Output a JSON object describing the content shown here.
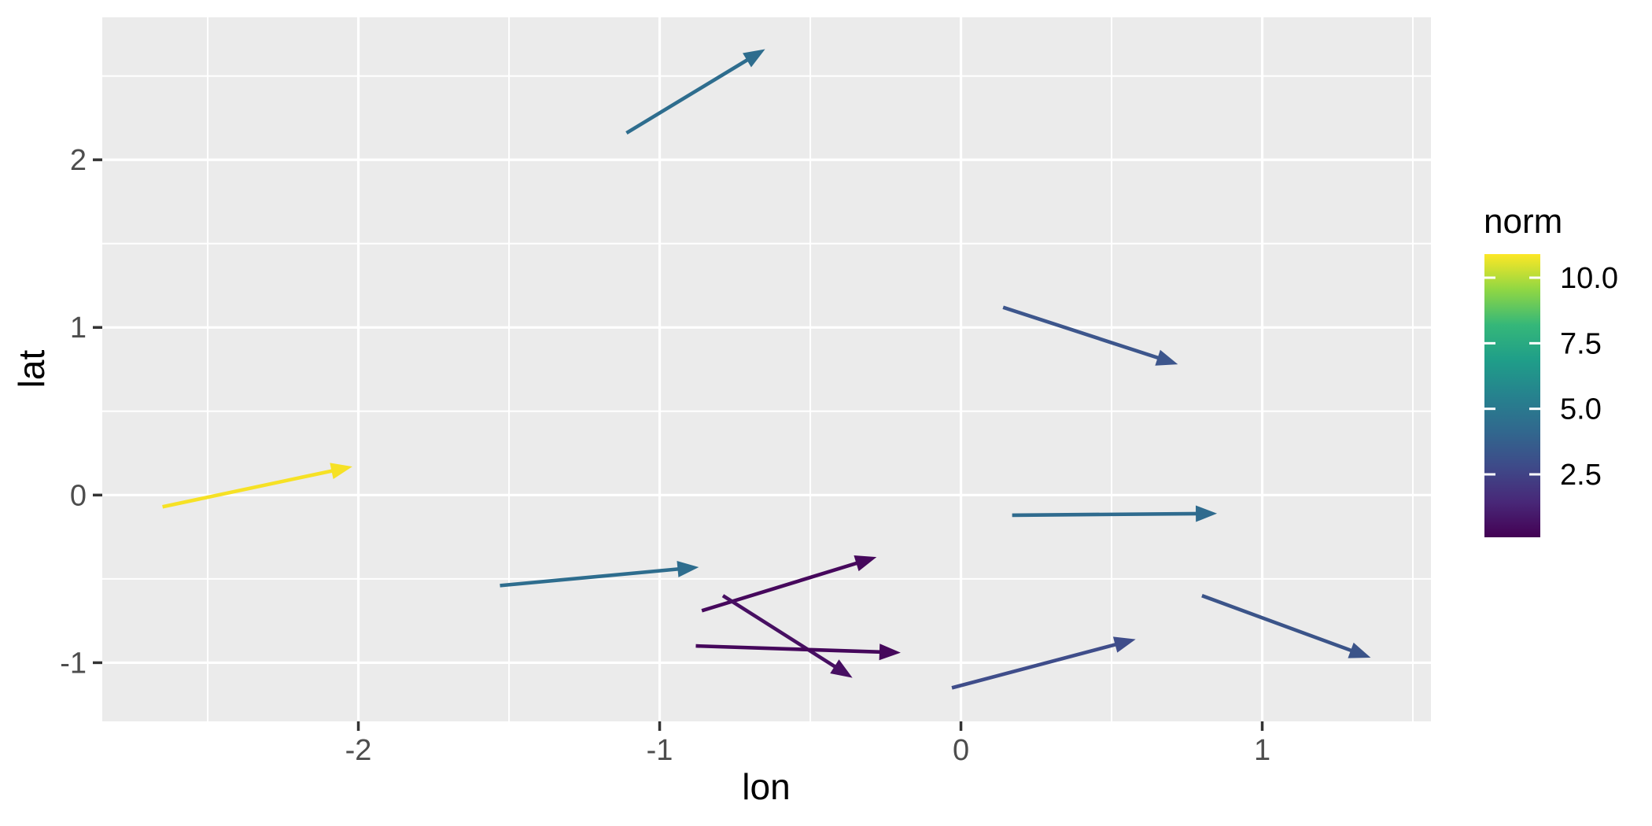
{
  "figure": {
    "background": "#ffffff",
    "panel_background": "#ebebeb",
    "grid_color": "#ffffff",
    "tick_mark_color": "#333333",
    "axis_text_color": "#4d4d4d",
    "title_color": "#000000"
  },
  "chart_data": {
    "type": "quiver",
    "title": "",
    "xlabel": "lon",
    "ylabel": "lat",
    "xlim": [
      -2.85,
      1.56
    ],
    "ylim": [
      -1.35,
      2.85
    ],
    "x_major_breaks": [
      -2,
      -1,
      0,
      1
    ],
    "x_major_labels": [
      "-2",
      "-1",
      "0",
      "1"
    ],
    "x_minor_breaks": [
      -2.5,
      -1.5,
      -0.5,
      0.5,
      1.5
    ],
    "y_major_breaks": [
      2,
      1,
      0,
      -1
    ],
    "y_major_labels": [
      "2",
      "1",
      "0",
      "-1"
    ],
    "y_minor_breaks": [
      2.5,
      1.5,
      0.5,
      -0.5
    ],
    "grid": true,
    "legend_position": "right",
    "arrows": [
      {
        "name": "arrow-top-teal",
        "x0": -1.11,
        "y0": 2.16,
        "x1": -0.65,
        "y1": 2.66,
        "color": "#2e6d8e",
        "norm_approx": 3.7
      },
      {
        "name": "arrow-upper-right-slate",
        "x0": 0.14,
        "y0": 1.12,
        "x1": 0.72,
        "y1": 0.78,
        "color": "#3d568c",
        "norm_approx": 2.9
      },
      {
        "name": "arrow-yellow",
        "x0": -2.65,
        "y0": -0.07,
        "x1": -2.02,
        "y1": 0.17,
        "color": "#f6e125",
        "norm_approx": 10.6
      },
      {
        "name": "arrow-mid-teal",
        "x0": -1.53,
        "y0": -0.54,
        "x1": -0.87,
        "y1": -0.43,
        "color": "#2e6d8e",
        "norm_approx": 3.7
      },
      {
        "name": "arrow-purple-upright",
        "x0": -0.86,
        "y0": -0.69,
        "x1": -0.28,
        "y1": -0.37,
        "color": "#46085c",
        "norm_approx": 0.7
      },
      {
        "name": "arrow-purple-downright",
        "x0": -0.79,
        "y0": -0.6,
        "x1": -0.36,
        "y1": -1.09,
        "color": "#470f62",
        "norm_approx": 0.9
      },
      {
        "name": "arrow-purple-horizontal",
        "x0": -0.88,
        "y0": -0.9,
        "x1": -0.2,
        "y1": -0.94,
        "color": "#45075b",
        "norm_approx": 0.6
      },
      {
        "name": "arrow-right-teal",
        "x0": 0.17,
        "y0": -0.12,
        "x1": 0.85,
        "y1": -0.11,
        "color": "#2f6b8e",
        "norm_approx": 3.6
      },
      {
        "name": "arrow-navy-upright",
        "x0": -0.03,
        "y0": -1.15,
        "x1": 0.58,
        "y1": -0.86,
        "color": "#3f4d8a",
        "norm_approx": 2.4
      },
      {
        "name": "arrow-navy-downright",
        "x0": 0.8,
        "y0": -0.6,
        "x1": 1.36,
        "y1": -0.97,
        "color": "#3b5489",
        "norm_approx": 2.7
      }
    ],
    "legend": {
      "title": "norm",
      "tick_values": [
        10.0,
        7.5,
        5.0,
        2.5
      ],
      "tick_labels": [
        "10.0",
        "7.5",
        "5.0",
        "2.5"
      ],
      "bar_min": 0.1,
      "bar_max": 10.9,
      "viridis_stops": [
        "#440154",
        "#482878",
        "#3e4a89",
        "#31688e",
        "#26828e",
        "#1f9e89",
        "#35b779",
        "#90d743",
        "#fde725"
      ]
    }
  }
}
